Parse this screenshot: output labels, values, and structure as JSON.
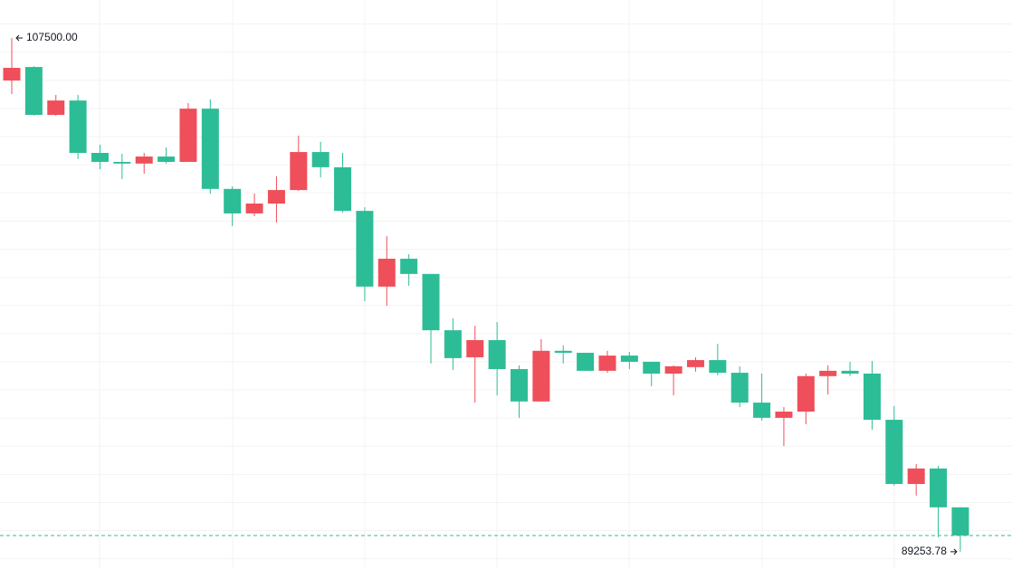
{
  "chart_data": {
    "type": "candlestick",
    "open": [
      105990,
      106470,
      104770,
      105280,
      103420,
      103100,
      103040,
      103290,
      103100,
      104990,
      102140,
      101270,
      101620,
      102100,
      103450,
      102910,
      101360,
      98670,
      99660,
      99120,
      97120,
      96160,
      96770,
      95740,
      94590,
      96390,
      96320,
      95680,
      96220,
      96000,
      95580,
      95810,
      96060,
      95610,
      94550,
      94010,
      94230,
      95490,
      95680,
      95580,
      93940,
      91660,
      92210,
      90830
    ],
    "high": [
      107500,
      106500,
      105480,
      105480,
      103710,
      103390,
      103420,
      103610,
      105190,
      105320,
      102230,
      101970,
      102590,
      104030,
      103810,
      103420,
      101490,
      100460,
      99820,
      99120,
      97540,
      97280,
      97410,
      95870,
      96800,
      96580,
      96320,
      96390,
      96350,
      96000,
      95870,
      96160,
      96640,
      95840,
      95580,
      94390,
      95580,
      95870,
      96000,
      96030,
      94430,
      92370,
      92300,
      90830
    ],
    "low": [
      105510,
      104740,
      104740,
      103200,
      102840,
      102490,
      102680,
      103040,
      103100,
      101970,
      100820,
      101170,
      100950,
      102070,
      102550,
      101300,
      98150,
      97990,
      98700,
      95940,
      95710,
      94550,
      94810,
      94010,
      94590,
      95940,
      95680,
      95610,
      95740,
      95130,
      94810,
      95650,
      95520,
      94390,
      93910,
      93010,
      93780,
      94840,
      95490,
      93590,
      91600,
      91250,
      89770,
      89253.78
    ],
    "close": [
      106440,
      104770,
      105280,
      103420,
      103100,
      103040,
      103290,
      103100,
      104990,
      102140,
      101270,
      101620,
      102100,
      103450,
      102910,
      101360,
      98670,
      99660,
      99120,
      97120,
      96130,
      96770,
      95740,
      94590,
      96390,
      96320,
      95680,
      96220,
      96000,
      95580,
      95840,
      96060,
      95610,
      94550,
      94010,
      94230,
      95490,
      95680,
      95580,
      93940,
      91660,
      92210,
      90830,
      89830
    ],
    "up_color": "#ef4f5a",
    "down_color": "#2dbd96",
    "ylim": [
      88640,
      108850
    ],
    "yticks": [
      89000,
      90000,
      91000,
      92000,
      93000,
      94000,
      95000,
      96000,
      97000,
      98000,
      99000,
      100000,
      101000,
      102000,
      103000,
      104000,
      105000,
      106000,
      107000,
      108000
    ],
    "grid": true,
    "price_line": true,
    "high_label": {
      "value": 107500,
      "label": "107500.00"
    },
    "low_label": {
      "value": 89253.78,
      "label": "89253.78"
    }
  }
}
